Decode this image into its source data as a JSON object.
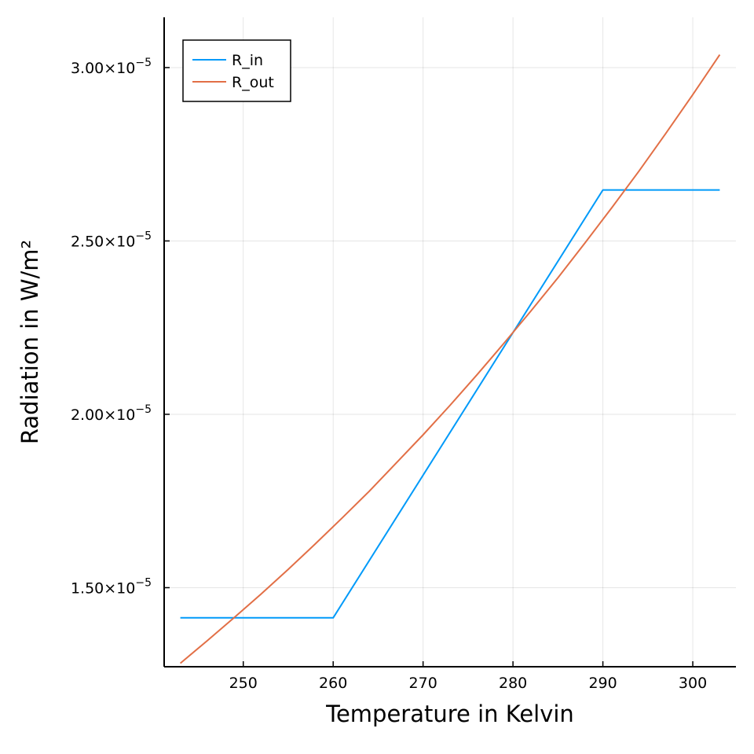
{
  "chart_data": {
    "type": "line",
    "xlabel": "Temperature in Kelvin",
    "ylabel": "Radiation in W/m²",
    "xlim": [
      241.2,
      304.8
    ],
    "ylim": [
      1.272e-05,
      3.145e-05
    ],
    "grid": true,
    "legend_position": "top-left",
    "x_ticks": [
      250,
      260,
      270,
      280,
      290,
      300
    ],
    "x_tick_labels": [
      "250",
      "260",
      "270",
      "280",
      "290",
      "300"
    ],
    "y_ticks": [
      1.5e-05,
      2e-05,
      2.5e-05,
      3e-05
    ],
    "y_tick_labels": [
      {
        "mantissa": "1.50",
        "times": "×10",
        "exponent": "−5"
      },
      {
        "mantissa": "2.00",
        "times": "×10",
        "exponent": "−5"
      },
      {
        "mantissa": "2.50",
        "times": "×10",
        "exponent": "−5"
      },
      {
        "mantissa": "3.00",
        "times": "×10",
        "exponent": "−5"
      }
    ],
    "series": [
      {
        "name": "R_in",
        "color": "#009af9",
        "x": [
          243,
          260,
          290,
          303
        ],
        "y": [
          1.413e-05,
          1.413e-05,
          2.647e-05,
          2.647e-05
        ]
      },
      {
        "name": "R_out",
        "color": "#e26f46",
        "x": [
          243,
          246,
          249,
          252,
          255,
          258,
          261,
          264,
          267,
          270,
          273,
          276,
          279,
          282,
          285,
          288,
          291,
          294,
          297,
          300,
          303
        ],
        "y": [
          1.282e-05,
          1.347e-05,
          1.414e-05,
          1.482e-05,
          1.553e-05,
          1.626e-05,
          1.701e-05,
          1.778e-05,
          1.859e-05,
          1.941e-05,
          2.026e-05,
          2.114e-05,
          2.205e-05,
          2.298e-05,
          2.394e-05,
          2.494e-05,
          2.596e-05,
          2.701e-05,
          2.81e-05,
          2.922e-05,
          3.037e-05
        ]
      }
    ]
  }
}
